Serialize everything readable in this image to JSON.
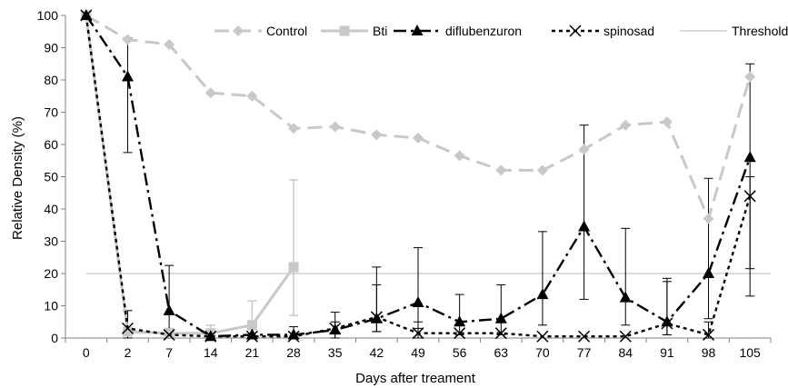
{
  "chart_data": {
    "type": "line",
    "title": "",
    "xlabel": "Days after treament",
    "ylabel": "Relative Density (%)",
    "ylim": [
      0,
      100
    ],
    "yticks": [
      0,
      10,
      20,
      30,
      40,
      50,
      60,
      70,
      80,
      90,
      100
    ],
    "categories": [
      "0",
      "2",
      "7",
      "14",
      "21",
      "28",
      "35",
      "42",
      "49",
      "56",
      "63",
      "70",
      "77",
      "84",
      "91",
      "98",
      "105"
    ],
    "grid": false,
    "legend_position": "top",
    "series": [
      {
        "name": "Control",
        "color": "#c8c8c8",
        "line_style": "long-dash",
        "marker": "diamond",
        "values": [
          100,
          92.5,
          91,
          76,
          75,
          65,
          65.5,
          63,
          62,
          56.5,
          52,
          52,
          58.5,
          66,
          67,
          37,
          81
        ]
      },
      {
        "name": "Bti",
        "color": "#c8c8c8",
        "line_style": "solid",
        "marker": "square",
        "values": [
          100,
          2,
          1.5,
          1.5,
          4,
          22,
          null,
          null,
          null,
          null,
          null,
          null,
          null,
          null,
          null,
          null,
          null
        ],
        "error_upper": [
          null,
          null,
          3,
          4,
          11.5,
          49,
          null,
          null,
          null,
          null,
          null,
          null,
          null,
          null,
          null,
          null,
          null
        ],
        "error_lower": [
          null,
          null,
          0,
          0,
          0,
          7,
          null,
          null,
          null,
          null,
          null,
          null,
          null,
          null,
          null,
          null,
          null
        ]
      },
      {
        "name": "diflubenzuron",
        "color": "#000000",
        "line_style": "dash-dot",
        "marker": "triangle",
        "values": [
          100,
          81,
          8.5,
          0.5,
          1,
          1,
          2.5,
          6,
          11,
          5,
          6,
          13.5,
          34.5,
          12.5,
          5,
          20,
          56
        ],
        "error_upper": [
          null,
          93,
          22.5,
          null,
          null,
          3.5,
          8,
          22,
          28,
          13.5,
          16.5,
          33,
          66,
          34,
          17.5,
          49.5,
          85
        ],
        "error_lower": [
          null,
          57.5,
          0,
          null,
          null,
          0,
          0,
          2,
          3,
          1,
          1,
          4,
          12,
          4,
          1,
          6,
          13
        ]
      },
      {
        "name": "spinosad",
        "color": "#000000",
        "line_style": "dotted",
        "marker": "x",
        "values": [
          100,
          3,
          1,
          0.5,
          0.5,
          0.5,
          3,
          6.5,
          1.5,
          1.5,
          1.5,
          0.5,
          0.5,
          0.5,
          4.5,
          1,
          44
        ],
        "error_upper": [
          null,
          8.5,
          null,
          null,
          null,
          null,
          5,
          16.5,
          5,
          null,
          null,
          null,
          null,
          null,
          18.5,
          5,
          50
        ],
        "error_lower": [
          null,
          0,
          null,
          null,
          null,
          null,
          0,
          2,
          0,
          null,
          null,
          null,
          null,
          null,
          1,
          0,
          21.5
        ]
      },
      {
        "name": "Threshold",
        "color": "#c8c8c8",
        "line_style": "thin-solid",
        "marker": "none",
        "constant": 20
      }
    ]
  }
}
